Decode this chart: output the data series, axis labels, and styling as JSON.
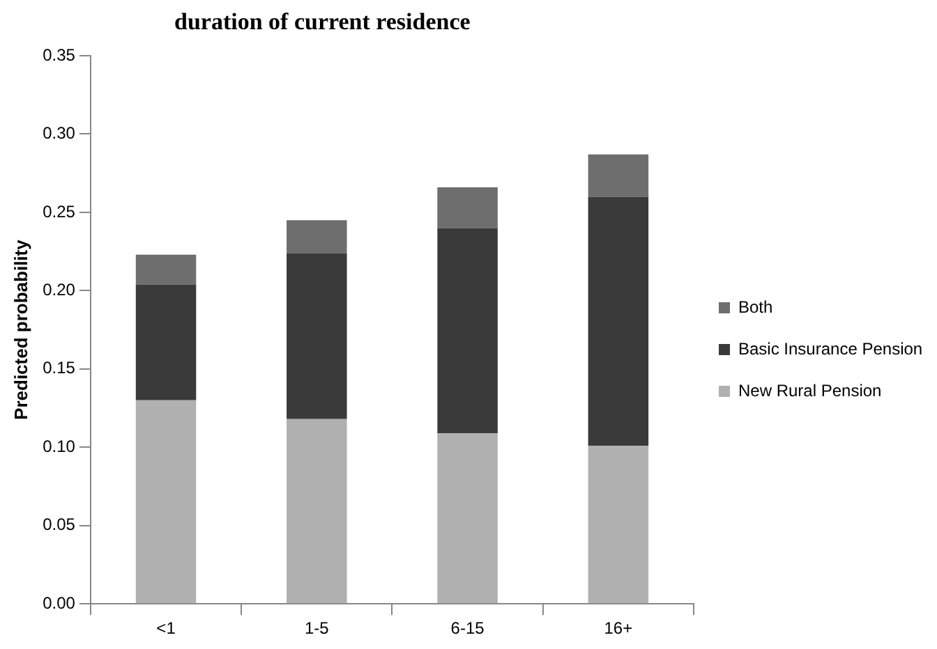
{
  "chart_data": {
    "type": "bar",
    "title": "duration of current residence",
    "ylabel": "Predicted probability",
    "categories": [
      "<1",
      "1-5",
      "6-15",
      "16+"
    ],
    "stacked": true,
    "series": [
      {
        "name": "New Rural Pension",
        "color": "#b0b0b0",
        "values": [
          0.13,
          0.118,
          0.109,
          0.101
        ]
      },
      {
        "name": "Basic Insurance Pension",
        "color": "#3a3a3a",
        "values": [
          0.074,
          0.106,
          0.131,
          0.159
        ]
      },
      {
        "name": "Both",
        "color": "#6e6e6e",
        "values": [
          0.019,
          0.021,
          0.026,
          0.027
        ]
      }
    ],
    "ylim": [
      0,
      0.35
    ],
    "yticks": [
      {
        "value": 0,
        "label": "0.00"
      },
      {
        "value": 0.05,
        "label": "0.05"
      },
      {
        "value": 0.1,
        "label": "0.10"
      },
      {
        "value": 0.15,
        "label": "0.15"
      },
      {
        "value": 0.2,
        "label": "0.20"
      },
      {
        "value": 0.25,
        "label": "0.25"
      },
      {
        "value": 0.3,
        "label": "0.30"
      },
      {
        "value": 0.35,
        "label": "0.35"
      }
    ],
    "grid": false,
    "legend": "right"
  }
}
